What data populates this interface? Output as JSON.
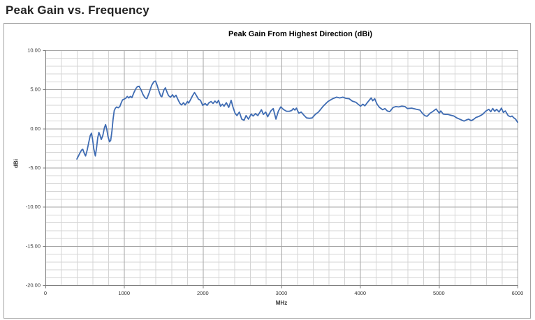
{
  "page": {
    "title": "Peak Gain vs. Frequency"
  },
  "chart_data": {
    "type": "line",
    "title": "Peak Gain From Highest Direction (dBi)",
    "xlabel": "MHz",
    "ylabel": "dBi",
    "xlim": [
      0,
      6000
    ],
    "ylim": [
      -20,
      10
    ],
    "x_major_step": 1000,
    "x_minor_step": 200,
    "y_major_step": 5,
    "y_minor_step": 1,
    "x_tick_labels": [
      "0",
      "1000",
      "2000",
      "3000",
      "4000",
      "5000",
      "6000"
    ],
    "y_tick_labels": [
      "10.00",
      "5.00",
      "0.00",
      "-5.00",
      "-10.00",
      "-15.00",
      "-20.00"
    ],
    "grid": true,
    "legend_position": "none",
    "colors": {
      "line": "#3f6cb3",
      "grid_minor": "#d4d4d4",
      "grid_major": "#a6a6a6",
      "axis": "#7f7f7f"
    },
    "series": [
      {
        "name": "Peak Gain",
        "color": "#3f6cb3",
        "points": [
          [
            400,
            -3.9
          ],
          [
            420,
            -3.5
          ],
          [
            440,
            -3.1
          ],
          [
            460,
            -2.75
          ],
          [
            475,
            -2.65
          ],
          [
            495,
            -3.2
          ],
          [
            510,
            -3.5
          ],
          [
            530,
            -2.8
          ],
          [
            550,
            -1.8
          ],
          [
            570,
            -0.9
          ],
          [
            585,
            -0.6
          ],
          [
            600,
            -1.4
          ],
          [
            615,
            -2.6
          ],
          [
            635,
            -3.5
          ],
          [
            650,
            -2.5
          ],
          [
            665,
            -1.2
          ],
          [
            680,
            -0.5
          ],
          [
            695,
            -0.9
          ],
          [
            710,
            -1.4
          ],
          [
            730,
            -0.9
          ],
          [
            750,
            0.1
          ],
          [
            765,
            0.5
          ],
          [
            780,
            -0.1
          ],
          [
            795,
            -1.0
          ],
          [
            815,
            -1.7
          ],
          [
            830,
            -1.5
          ],
          [
            845,
            -0.4
          ],
          [
            860,
            1.2
          ],
          [
            875,
            2.3
          ],
          [
            890,
            2.6
          ],
          [
            905,
            2.75
          ],
          [
            925,
            2.65
          ],
          [
            945,
            2.8
          ],
          [
            960,
            3.2
          ],
          [
            980,
            3.65
          ],
          [
            1000,
            3.75
          ],
          [
            1020,
            3.85
          ],
          [
            1040,
            4.1
          ],
          [
            1060,
            3.9
          ],
          [
            1080,
            4.1
          ],
          [
            1100,
            3.95
          ],
          [
            1125,
            4.6
          ],
          [
            1150,
            5.1
          ],
          [
            1170,
            5.35
          ],
          [
            1190,
            5.4
          ],
          [
            1215,
            4.95
          ],
          [
            1240,
            4.35
          ],
          [
            1265,
            3.95
          ],
          [
            1290,
            3.8
          ],
          [
            1320,
            4.6
          ],
          [
            1350,
            5.5
          ],
          [
            1380,
            6.0
          ],
          [
            1400,
            6.05
          ],
          [
            1420,
            5.5
          ],
          [
            1445,
            4.7
          ],
          [
            1465,
            4.15
          ],
          [
            1480,
            4.05
          ],
          [
            1505,
            4.9
          ],
          [
            1525,
            5.2
          ],
          [
            1545,
            4.65
          ],
          [
            1565,
            4.2
          ],
          [
            1590,
            4.0
          ],
          [
            1615,
            4.3
          ],
          [
            1635,
            4.0
          ],
          [
            1660,
            4.25
          ],
          [
            1685,
            3.7
          ],
          [
            1710,
            3.2
          ],
          [
            1730,
            3.0
          ],
          [
            1755,
            3.3
          ],
          [
            1775,
            3.0
          ],
          [
            1805,
            3.45
          ],
          [
            1820,
            3.25
          ],
          [
            1845,
            3.7
          ],
          [
            1870,
            4.2
          ],
          [
            1895,
            4.6
          ],
          [
            1920,
            4.2
          ],
          [
            1945,
            3.75
          ],
          [
            1970,
            3.6
          ],
          [
            2000,
            2.95
          ],
          [
            2030,
            3.2
          ],
          [
            2055,
            2.95
          ],
          [
            2080,
            3.3
          ],
          [
            2105,
            3.45
          ],
          [
            2130,
            3.2
          ],
          [
            2155,
            3.5
          ],
          [
            2180,
            3.25
          ],
          [
            2200,
            3.6
          ],
          [
            2225,
            2.85
          ],
          [
            2250,
            3.1
          ],
          [
            2270,
            2.85
          ],
          [
            2300,
            3.3
          ],
          [
            2330,
            2.7
          ],
          [
            2360,
            3.6
          ],
          [
            2385,
            2.7
          ],
          [
            2410,
            1.95
          ],
          [
            2435,
            1.65
          ],
          [
            2465,
            2.1
          ],
          [
            2495,
            1.2
          ],
          [
            2525,
            1.05
          ],
          [
            2550,
            1.65
          ],
          [
            2580,
            1.2
          ],
          [
            2615,
            1.85
          ],
          [
            2640,
            1.6
          ],
          [
            2670,
            1.9
          ],
          [
            2700,
            1.65
          ],
          [
            2745,
            2.4
          ],
          [
            2770,
            1.8
          ],
          [
            2800,
            2.1
          ],
          [
            2825,
            1.5
          ],
          [
            2865,
            2.25
          ],
          [
            2895,
            2.55
          ],
          [
            2930,
            1.2
          ],
          [
            2960,
            2.2
          ],
          [
            2990,
            2.75
          ],
          [
            3030,
            2.4
          ],
          [
            3065,
            2.2
          ],
          [
            3100,
            2.2
          ],
          [
            3130,
            2.3
          ],
          [
            3150,
            2.55
          ],
          [
            3170,
            2.35
          ],
          [
            3190,
            2.6
          ],
          [
            3220,
            1.95
          ],
          [
            3250,
            2.1
          ],
          [
            3285,
            1.7
          ],
          [
            3320,
            1.35
          ],
          [
            3355,
            1.3
          ],
          [
            3390,
            1.35
          ],
          [
            3430,
            1.8
          ],
          [
            3470,
            2.1
          ],
          [
            3530,
            2.85
          ],
          [
            3590,
            3.45
          ],
          [
            3650,
            3.8
          ],
          [
            3700,
            4.0
          ],
          [
            3740,
            3.9
          ],
          [
            3780,
            4.0
          ],
          [
            3820,
            3.85
          ],
          [
            3860,
            3.8
          ],
          [
            3900,
            3.5
          ],
          [
            3945,
            3.35
          ],
          [
            3975,
            3.1
          ],
          [
            4005,
            2.85
          ],
          [
            4035,
            3.1
          ],
          [
            4060,
            2.9
          ],
          [
            4090,
            3.3
          ],
          [
            4140,
            3.9
          ],
          [
            4160,
            3.55
          ],
          [
            4185,
            3.8
          ],
          [
            4215,
            3.1
          ],
          [
            4245,
            2.7
          ],
          [
            4285,
            2.4
          ],
          [
            4315,
            2.55
          ],
          [
            4345,
            2.25
          ],
          [
            4375,
            2.15
          ],
          [
            4420,
            2.7
          ],
          [
            4455,
            2.8
          ],
          [
            4490,
            2.75
          ],
          [
            4530,
            2.85
          ],
          [
            4570,
            2.8
          ],
          [
            4600,
            2.55
          ],
          [
            4655,
            2.6
          ],
          [
            4715,
            2.45
          ],
          [
            4760,
            2.35
          ],
          [
            4790,
            1.95
          ],
          [
            4820,
            1.65
          ],
          [
            4850,
            1.55
          ],
          [
            4890,
            1.95
          ],
          [
            4920,
            2.15
          ],
          [
            4965,
            2.5
          ],
          [
            5005,
            1.95
          ],
          [
            5025,
            2.25
          ],
          [
            5055,
            1.85
          ],
          [
            5085,
            1.8
          ],
          [
            5115,
            1.8
          ],
          [
            5150,
            1.7
          ],
          [
            5190,
            1.6
          ],
          [
            5230,
            1.35
          ],
          [
            5275,
            1.15
          ],
          [
            5320,
            0.95
          ],
          [
            5350,
            1.1
          ],
          [
            5380,
            1.2
          ],
          [
            5410,
            1.0
          ],
          [
            5440,
            1.15
          ],
          [
            5470,
            1.4
          ],
          [
            5510,
            1.55
          ],
          [
            5555,
            1.8
          ],
          [
            5600,
            2.25
          ],
          [
            5635,
            2.45
          ],
          [
            5660,
            2.15
          ],
          [
            5685,
            2.55
          ],
          [
            5710,
            2.2
          ],
          [
            5735,
            2.45
          ],
          [
            5765,
            2.1
          ],
          [
            5795,
            2.6
          ],
          [
            5820,
            2.05
          ],
          [
            5845,
            2.25
          ],
          [
            5880,
            1.65
          ],
          [
            5910,
            1.5
          ],
          [
            5930,
            1.6
          ],
          [
            5955,
            1.35
          ],
          [
            5975,
            1.2
          ],
          [
            6000,
            0.8
          ]
        ]
      }
    ]
  }
}
